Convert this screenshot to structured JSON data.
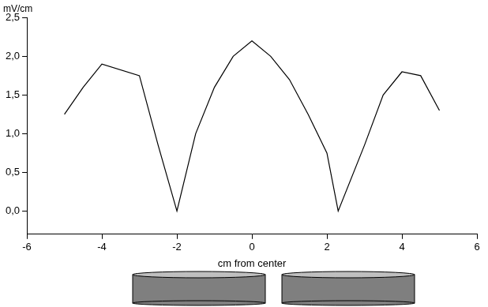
{
  "chart_data": {
    "type": "line",
    "x_label": "cm from center",
    "y_label": "mV/cm",
    "x": [
      -5,
      -4.5,
      -4,
      -3,
      -2.5,
      -2,
      -1.5,
      -1,
      -0.5,
      0,
      0.5,
      1,
      1.5,
      2,
      2.3,
      3,
      3.5,
      4,
      4.5,
      5
    ],
    "values": [
      1.25,
      1.6,
      1.9,
      1.75,
      0.85,
      0.0,
      1.0,
      1.6,
      2.0,
      2.2,
      2.0,
      1.7,
      1.25,
      0.75,
      0.0,
      0.85,
      1.5,
      1.8,
      1.75,
      1.3
    ],
    "color": "#000000",
    "marker": "none",
    "xlim": [
      -6,
      6
    ],
    "xticks": [
      -6,
      -4,
      -2,
      0,
      2,
      4,
      6
    ],
    "ylim": [
      -0.3,
      2.5
    ],
    "yticks": [
      {
        "value": 0,
        "label": "0,0"
      },
      {
        "value": 0.5,
        "label": "0,5"
      },
      {
        "value": 1,
        "label": "1,0"
      },
      {
        "value": 1.5,
        "label": "1,5"
      },
      {
        "value": 2,
        "label": "2,0"
      },
      {
        "value": 2.5,
        "label": "2,5"
      }
    ],
    "grid": false
  }
}
